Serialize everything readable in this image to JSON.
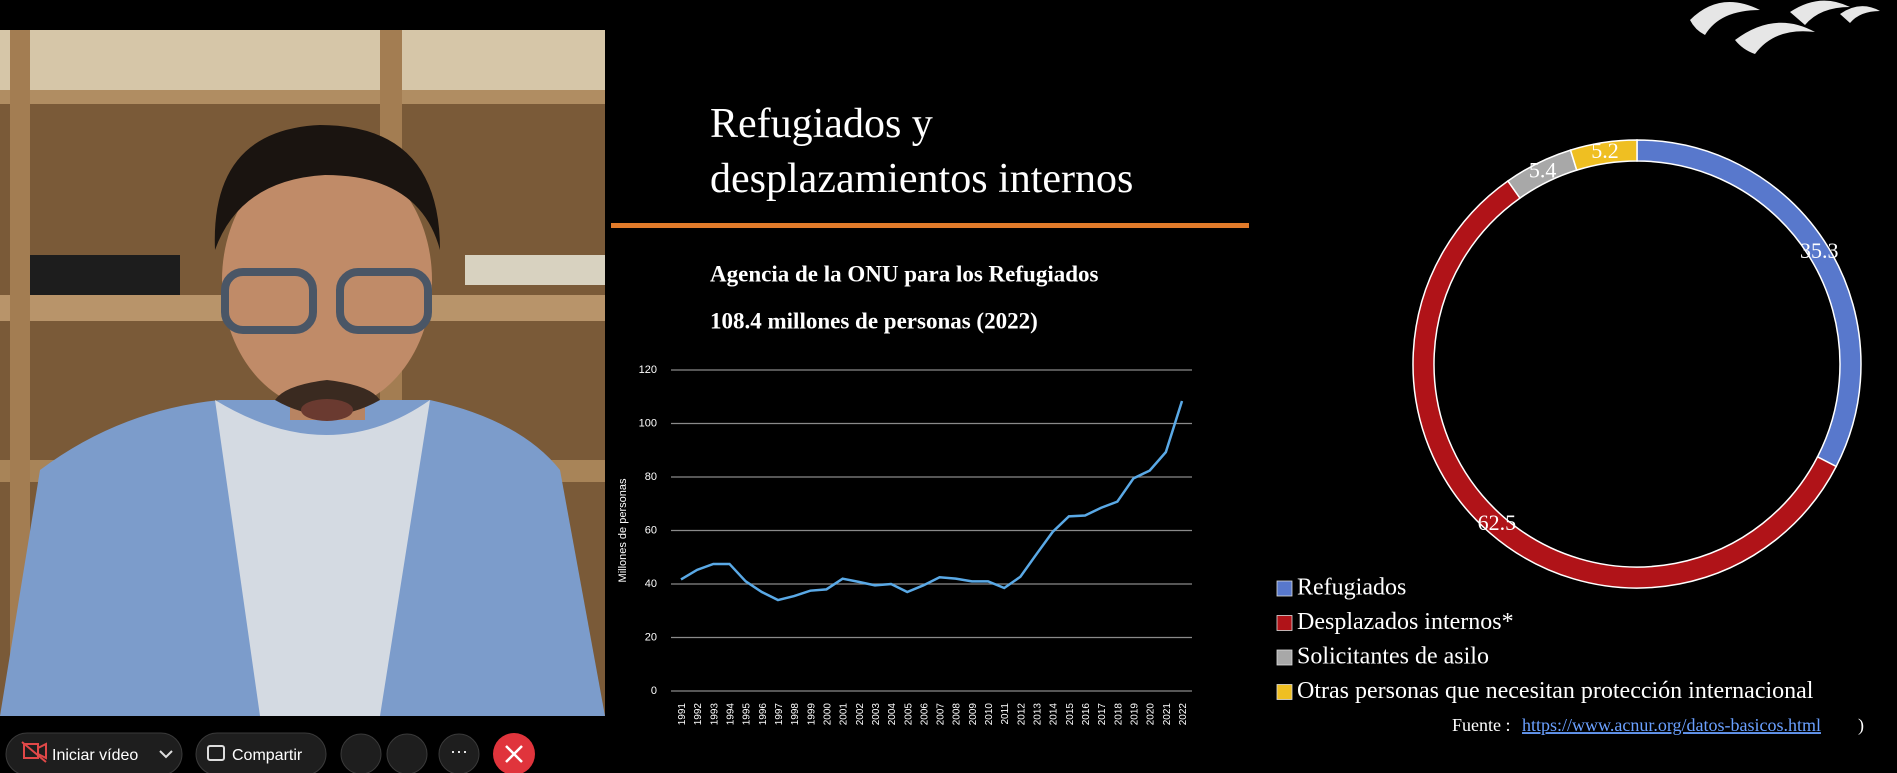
{
  "toolbar": {
    "start_video": "Iniciar vídeo",
    "share": "Compartir"
  },
  "slide": {
    "title_line1": "Refugiados y",
    "title_line2": "desplazamientos internos",
    "subtitle_1": "Agencia de la ONU para los Refugiados",
    "subtitle_2": "108.4 millones de personas  (2022)",
    "source_label": "Fuente :",
    "source_url": "https://www.acnur.org/datos-basicos.html",
    "source_close": ")"
  },
  "chart_data": [
    {
      "type": "line",
      "ylabel": "Millones de personas",
      "x": [
        1991,
        1992,
        1993,
        1994,
        1995,
        1996,
        1997,
        1998,
        1999,
        2000,
        2001,
        2002,
        2003,
        2004,
        2005,
        2006,
        2007,
        2008,
        2009,
        2010,
        2011,
        2012,
        2013,
        2014,
        2015,
        2016,
        2017,
        2018,
        2019,
        2020,
        2021,
        2022
      ],
      "series": [
        {
          "color": "#5aa9e6",
          "values": [
            41.7,
            45.3,
            47.5,
            47.5,
            41,
            37,
            34,
            35.5,
            37.5,
            38,
            42,
            40.8,
            39.5,
            40,
            37,
            39.5,
            42.5,
            42,
            41,
            41,
            38.5,
            42.7,
            51.2,
            59.5,
            65.3,
            65.6,
            68.5,
            70.8,
            79.5,
            82.4,
            89.3,
            108.4
          ]
        }
      ],
      "xlim": [
        1991,
        2022
      ],
      "xticks": [
        1991,
        1992,
        1993,
        1994,
        1995,
        1996,
        1997,
        1998,
        1999,
        2000,
        2001,
        2002,
        2003,
        2004,
        2005,
        2006,
        2007,
        2008,
        2009,
        2010,
        2011,
        2012,
        2013,
        2014,
        2015,
        2016,
        2017,
        2018,
        2019,
        2020,
        2021,
        2022
      ],
      "ylim": [
        0,
        120
      ],
      "yticks": [
        0,
        20,
        40,
        60,
        80,
        100,
        120
      ],
      "grid": true
    },
    {
      "type": "pie",
      "donut": true,
      "categories": [
        "Refugiados",
        "Desplazados internos*",
        "Solicitantes de asilo",
        "Otras personas que necesitan protección internacional"
      ],
      "values": [
        35.3,
        62.5,
        5.4,
        5.2
      ],
      "colors": [
        "#5878cc",
        "#b01318",
        "#a8a8a8",
        "#efbf22"
      ]
    }
  ]
}
